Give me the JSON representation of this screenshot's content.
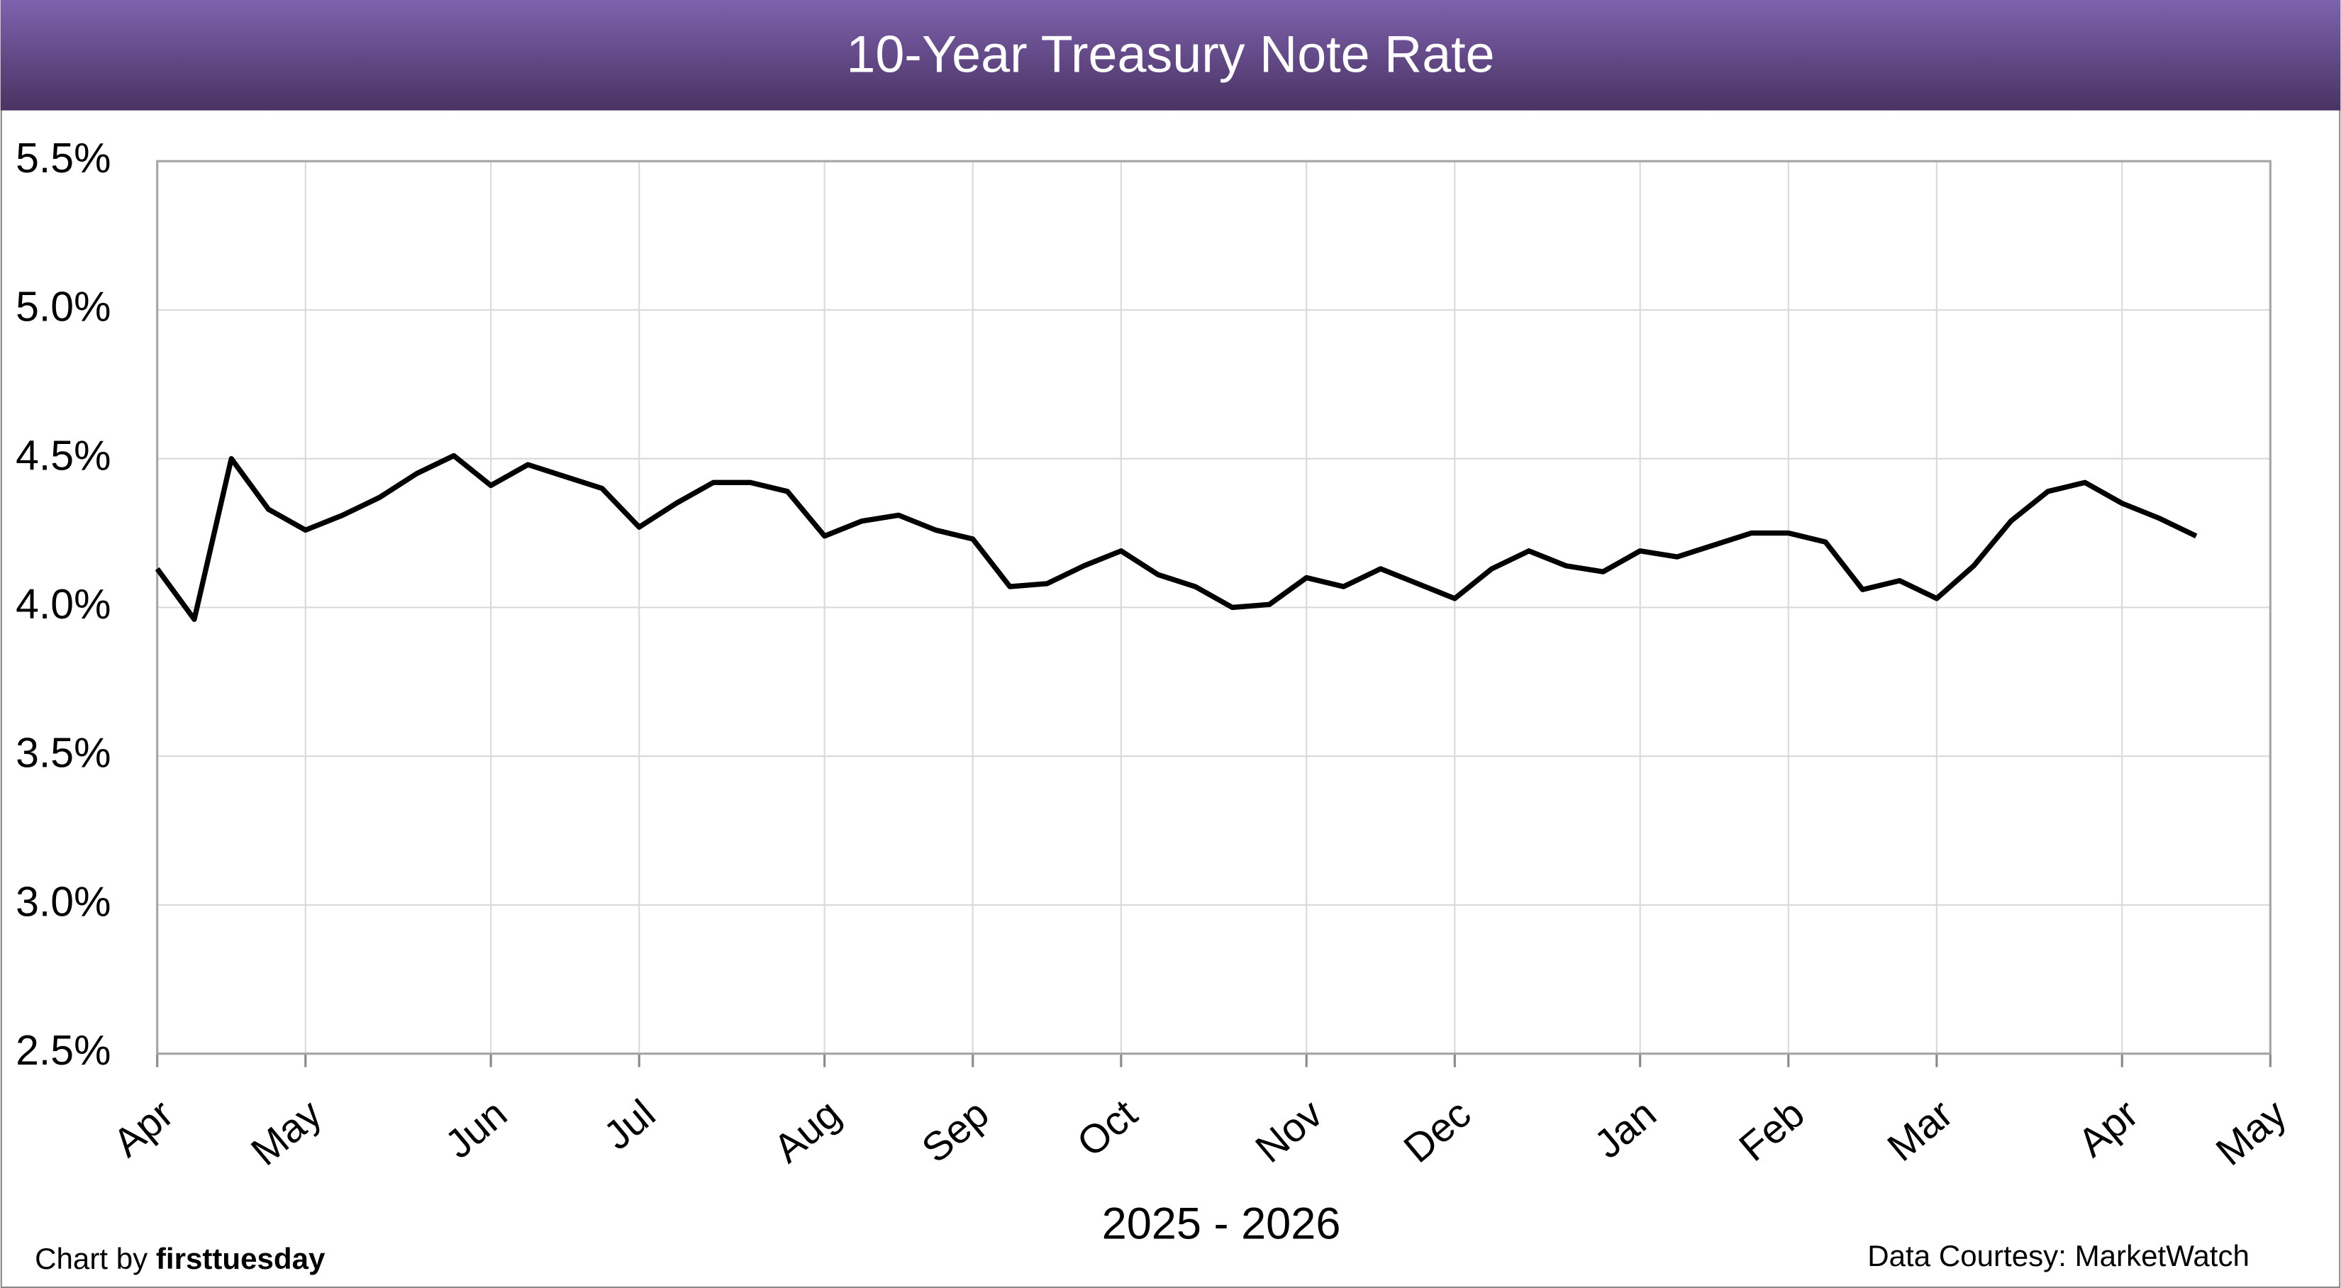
{
  "chart_data": {
    "type": "line",
    "title": "10-Year Treasury Note Rate",
    "x_label": "2025 - 2026",
    "categories": [
      "Apr",
      null,
      null,
      null,
      "May",
      null,
      null,
      null,
      null,
      "Jun",
      null,
      null,
      null,
      "Jul",
      null,
      null,
      null,
      null,
      "Aug",
      null,
      null,
      null,
      "Sep",
      null,
      null,
      null,
      "Oct",
      null,
      null,
      null,
      null,
      "Nov",
      null,
      null,
      null,
      "Dec",
      null,
      null,
      null,
      null,
      "Jan",
      null,
      null,
      null,
      "Feb",
      null,
      null,
      null,
      "Mar",
      null,
      null,
      null,
      null,
      "Apr",
      null,
      null,
      null,
      "May"
    ],
    "series": [
      {
        "name": "10-Year Treasury Note Rate",
        "color": "#000000",
        "values": [
          4.13,
          3.96,
          4.5,
          4.33,
          4.26,
          4.31,
          4.37,
          4.45,
          4.51,
          4.41,
          4.48,
          4.44,
          4.4,
          4.27,
          4.35,
          4.42,
          4.42,
          4.39,
          4.24,
          4.29,
          4.31,
          4.26,
          4.23,
          4.07,
          4.08,
          4.14,
          4.19,
          4.11,
          4.07,
          4.0,
          4.01,
          4.1,
          4.07,
          4.13,
          4.08,
          4.03,
          4.13,
          4.19,
          4.14,
          4.12,
          4.19,
          4.17,
          4.21,
          4.25,
          4.25,
          4.22,
          4.06,
          4.09,
          4.03,
          4.14,
          4.29,
          4.39,
          4.42,
          4.35,
          4.3,
          4.24,
          null,
          null
        ]
      }
    ],
    "ylim": [
      2.5,
      5.5
    ],
    "yticks": [
      {
        "value": 2.5,
        "label": "2.5%"
      },
      {
        "value": 3.0,
        "label": "3.0%"
      },
      {
        "value": 3.5,
        "label": "3.5%"
      },
      {
        "value": 4.0,
        "label": "4.0%"
      },
      {
        "value": 4.5,
        "label": "4.5%"
      },
      {
        "value": 5.0,
        "label": "5.0%"
      },
      {
        "value": 5.5,
        "label": "5.5%"
      }
    ],
    "grid": true
  },
  "credit": {
    "prefix": "Chart by",
    "name": "firsttuesday"
  },
  "source": "Data Courtesy: MarketWatch"
}
